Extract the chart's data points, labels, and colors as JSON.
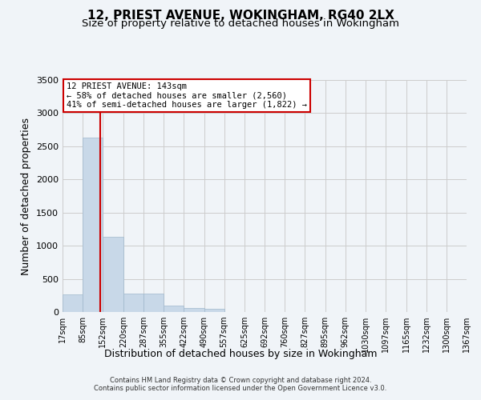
{
  "title": "12, PRIEST AVENUE, WOKINGHAM, RG40 2LX",
  "subtitle": "Size of property relative to detached houses in Wokingham",
  "xlabel": "Distribution of detached houses by size in Wokingham",
  "ylabel": "Number of detached properties",
  "footer_line1": "Contains HM Land Registry data © Crown copyright and database right 2024.",
  "footer_line2": "Contains public sector information licensed under the Open Government Licence v3.0.",
  "annotation_title": "12 PRIEST AVENUE: 143sqm",
  "annotation_line2": "← 58% of detached houses are smaller (2,560)",
  "annotation_line3": "41% of semi-detached houses are larger (1,822) →",
  "property_size": 143,
  "bin_edges": [
    17,
    85,
    152,
    220,
    287,
    355,
    422,
    490,
    557,
    625,
    692,
    760,
    827,
    895,
    962,
    1030,
    1097,
    1165,
    1232,
    1300,
    1367
  ],
  "bar_heights": [
    270,
    2630,
    1140,
    280,
    280,
    100,
    60,
    45,
    0,
    0,
    0,
    0,
    0,
    0,
    0,
    0,
    0,
    0,
    0,
    0
  ],
  "bar_color": "#c8d8e8",
  "bar_edge_color": "#a0b8cc",
  "vline_color": "#cc0000",
  "vline_x": 143,
  "ylim": [
    0,
    3500
  ],
  "yticks": [
    0,
    500,
    1000,
    1500,
    2000,
    2500,
    3000,
    3500
  ],
  "grid_color": "#cccccc",
  "background_color": "#f0f4f8",
  "annotation_box_color": "#ffffff",
  "annotation_box_edge": "#cc0000",
  "title_fontsize": 11,
  "subtitle_fontsize": 9.5,
  "xlabel_fontsize": 9,
  "ylabel_fontsize": 9,
  "tick_fontsize": 7,
  "ytick_fontsize": 8,
  "annotation_fontsize": 7.5,
  "footer_fontsize": 6
}
